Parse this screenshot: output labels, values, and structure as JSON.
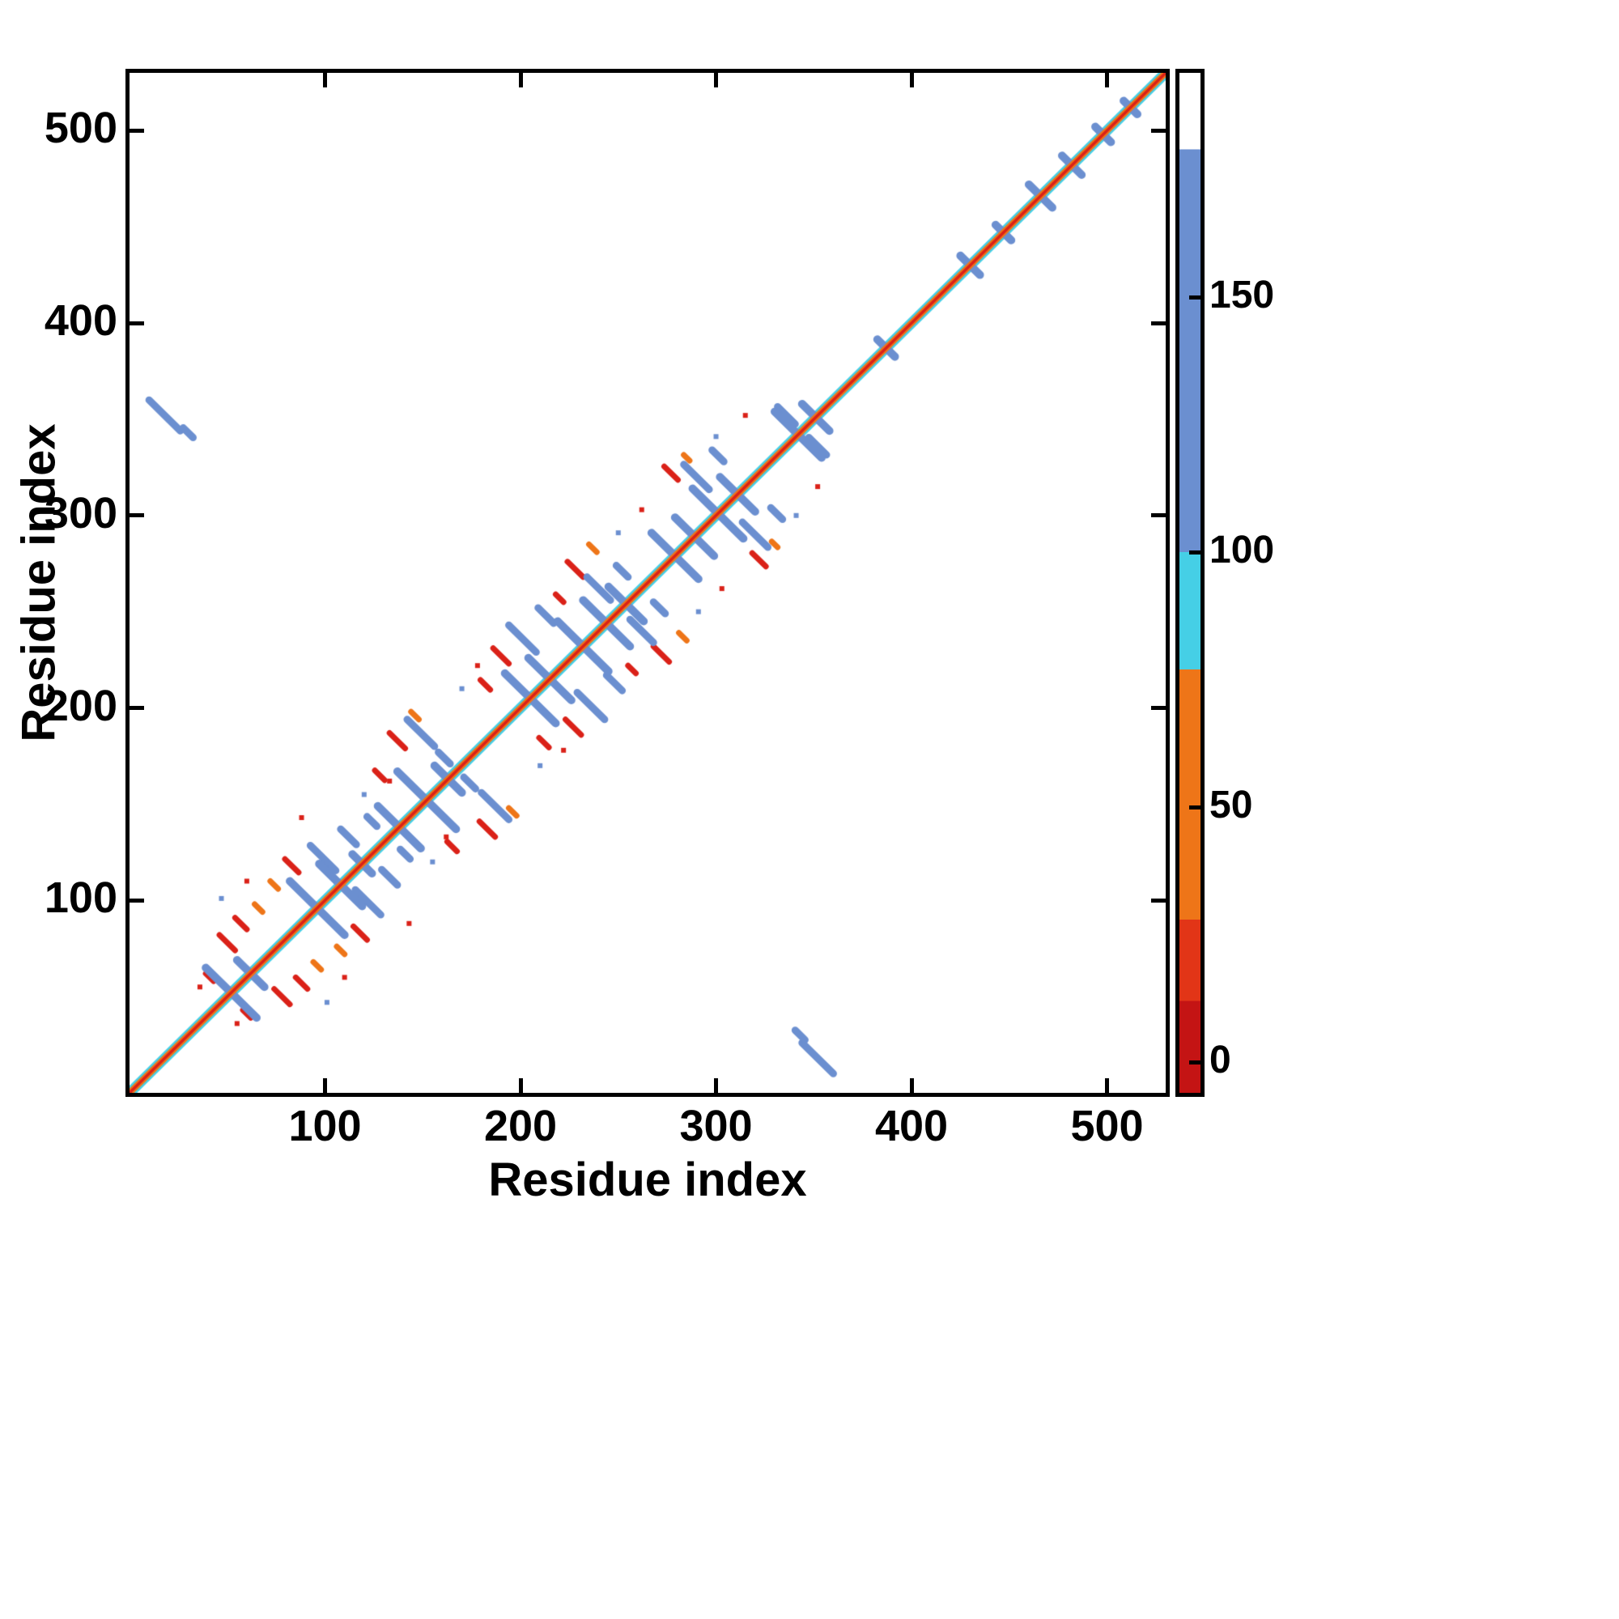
{
  "chart_data": {
    "type": "heatmap",
    "title": "",
    "xlabel": "Residue index",
    "ylabel": "Residue index",
    "xlim": [
      0,
      530
    ],
    "ylim": [
      0,
      530
    ],
    "x_ticks": [
      100,
      200,
      300,
      400,
      500
    ],
    "y_ticks": [
      100,
      200,
      300,
      400,
      500
    ],
    "grid": false,
    "legend": "none",
    "colorbar": {
      "vmin": -6,
      "vmax": 194,
      "ticks": [
        0,
        50,
        100,
        150
      ],
      "segments": [
        {
          "from": -6,
          "to": 12,
          "color": "#c41414"
        },
        {
          "from": 12,
          "to": 28,
          "color": "#e23517"
        },
        {
          "from": 28,
          "to": 77,
          "color": "#ee7518"
        },
        {
          "from": 77,
          "to": 100,
          "color": "#45cfe6"
        },
        {
          "from": 100,
          "to": 179,
          "color": "#6b8fd0"
        },
        {
          "from": 179,
          "to": 194,
          "color": "#ffffff"
        }
      ]
    },
    "features": {
      "blue": "#6b8fd0",
      "cyan": "#45cfe6",
      "diagonal": {
        "outer_color": "#45cfe6",
        "mid_color": "#ee7518",
        "core_color": "#da2118",
        "outer_width": 13,
        "mid_width": 8,
        "core_width": 3.5
      },
      "antiparallel_on_diagonal": [
        {
          "c": 52,
          "len": 26
        },
        {
          "c": 62,
          "len": 14
        },
        {
          "c": 96,
          "len": 28
        },
        {
          "c": 108,
          "len": 22
        },
        {
          "c": 119,
          "len": 10
        },
        {
          "c": 138,
          "len": 22
        },
        {
          "c": 152,
          "len": 30
        },
        {
          "c": 163,
          "len": 14
        },
        {
          "c": 205,
          "len": 26
        },
        {
          "c": 215,
          "len": 22
        },
        {
          "c": 232,
          "len": 26
        },
        {
          "c": 244,
          "len": 24
        },
        {
          "c": 254,
          "len": 18
        },
        {
          "c": 279,
          "len": 24
        },
        {
          "c": 289,
          "len": 20
        },
        {
          "c": 301,
          "len": 26
        },
        {
          "c": 311,
          "len": 18
        },
        {
          "c": 342,
          "len": 24
        },
        {
          "c": 351,
          "len": 14
        },
        {
          "c": 387,
          "len": 9
        },
        {
          "c": 430,
          "len": 10
        },
        {
          "c": 447,
          "len": 8
        },
        {
          "c": 466,
          "len": 12
        },
        {
          "c": 482,
          "len": 10
        },
        {
          "c": 498,
          "len": 8
        },
        {
          "c": 512,
          "len": 7
        }
      ],
      "antiparallel_off_diagonal": [
        {
          "x": 18,
          "y": 352,
          "len": 16
        },
        {
          "x": 30,
          "y": 343,
          "len": 5
        },
        {
          "x": 99,
          "y": 122,
          "len": 13
        },
        {
          "x": 112,
          "y": 133,
          "len": 8
        },
        {
          "x": 124,
          "y": 141,
          "len": 5
        },
        {
          "x": 149,
          "y": 187,
          "len": 14
        },
        {
          "x": 161,
          "y": 174,
          "len": 6
        },
        {
          "x": 201,
          "y": 236,
          "len": 14
        },
        {
          "x": 213,
          "y": 248,
          "len": 8
        },
        {
          "x": 240,
          "y": 262,
          "len": 12
        },
        {
          "x": 252,
          "y": 271,
          "len": 6
        },
        {
          "x": 290,
          "y": 320,
          "len": 13
        },
        {
          "x": 301,
          "y": 331,
          "len": 6
        },
        {
          "x": 336,
          "y": 352,
          "len": 9
        }
      ],
      "contact_clusters_warm": [
        {
          "x": 50,
          "y": 78,
          "len": 8,
          "color": "#da2118"
        },
        {
          "x": 57,
          "y": 88,
          "len": 6,
          "color": "#da2118"
        },
        {
          "x": 66,
          "y": 96,
          "len": 4,
          "color": "#ee7518"
        },
        {
          "x": 41,
          "y": 60,
          "len": 4,
          "color": "#da2118"
        },
        {
          "x": 83,
          "y": 118,
          "len": 7,
          "color": "#da2118"
        },
        {
          "x": 74,
          "y": 108,
          "len": 4,
          "color": "#ee7518"
        },
        {
          "x": 137,
          "y": 183,
          "len": 8,
          "color": "#da2118"
        },
        {
          "x": 128,
          "y": 165,
          "len": 5,
          "color": "#da2118"
        },
        {
          "x": 146,
          "y": 196,
          "len": 4,
          "color": "#ee7518"
        },
        {
          "x": 190,
          "y": 227,
          "len": 8,
          "color": "#da2118"
        },
        {
          "x": 182,
          "y": 212,
          "len": 5,
          "color": "#da2118"
        },
        {
          "x": 228,
          "y": 272,
          "len": 8,
          "color": "#da2118"
        },
        {
          "x": 220,
          "y": 257,
          "len": 4,
          "color": "#da2118"
        },
        {
          "x": 237,
          "y": 283,
          "len": 4,
          "color": "#ee7518"
        },
        {
          "x": 277,
          "y": 322,
          "len": 7,
          "color": "#da2118"
        },
        {
          "x": 285,
          "y": 330,
          "len": 3,
          "color": "#ee7518"
        }
      ],
      "dots": [
        {
          "x": 47,
          "y": 101,
          "color": "#6b8fd0"
        },
        {
          "x": 60,
          "y": 110,
          "color": "#da2118"
        },
        {
          "x": 88,
          "y": 143,
          "color": "#da2118"
        },
        {
          "x": 120,
          "y": 155,
          "color": "#6b8fd0"
        },
        {
          "x": 133,
          "y": 162,
          "color": "#da2118"
        },
        {
          "x": 170,
          "y": 210,
          "color": "#6b8fd0"
        },
        {
          "x": 178,
          "y": 222,
          "color": "#da2118"
        },
        {
          "x": 250,
          "y": 291,
          "color": "#6b8fd0"
        },
        {
          "x": 262,
          "y": 303,
          "color": "#da2118"
        },
        {
          "x": 300,
          "y": 341,
          "color": "#6b8fd0"
        },
        {
          "x": 315,
          "y": 352,
          "color": "#da2118"
        },
        {
          "x": 36,
          "y": 55,
          "color": "#da2118"
        }
      ]
    }
  }
}
